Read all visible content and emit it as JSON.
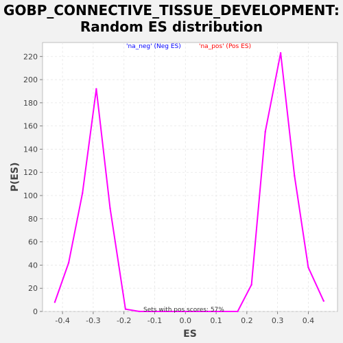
{
  "chart_data": {
    "type": "line",
    "title_line1": "GOBP_CONNECTIVE_TISSUE_DEVELOPMENT:",
    "title_line2": "Random ES distribution",
    "xlabel": "ES",
    "ylabel": "P(ES)",
    "xlim": [
      -0.465,
      0.495
    ],
    "ylim": [
      0,
      232
    ],
    "xticks": [
      -0.4,
      -0.3,
      -0.2,
      -0.1,
      0.0,
      0.1,
      0.2,
      0.3,
      0.4
    ],
    "xtick_labels": [
      "-0.4",
      "-0.3",
      "-0.2",
      "-0.1",
      "0.0",
      "0.1",
      "0.2",
      "0.3",
      "0.4"
    ],
    "yticks": [
      0,
      20,
      40,
      60,
      80,
      100,
      120,
      140,
      160,
      180,
      200,
      220
    ],
    "ytick_labels": [
      "0",
      "20",
      "40",
      "60",
      "80",
      "100",
      "120",
      "140",
      "160",
      "180",
      "200",
      "220"
    ],
    "grid": true,
    "legend": [
      {
        "label": "'na_neg' (Neg ES)",
        "color": "#0000ff"
      },
      {
        "label": "'na_pos' (Pos ES)",
        "color": "#ff0000"
      }
    ],
    "annotation": "Sets with pos scores: 57%",
    "series": [
      {
        "color": "#ff00ff",
        "x": [
          -0.425,
          -0.38,
          -0.335,
          -0.29,
          -0.245,
          -0.195,
          -0.15,
          -0.105,
          0.17,
          0.215,
          0.26,
          0.31,
          0.355,
          0.4,
          0.45
        ],
        "y": [
          8,
          42,
          102,
          192,
          89,
          2,
          0,
          0,
          0,
          23,
          155,
          223,
          117,
          38,
          9
        ]
      }
    ]
  }
}
